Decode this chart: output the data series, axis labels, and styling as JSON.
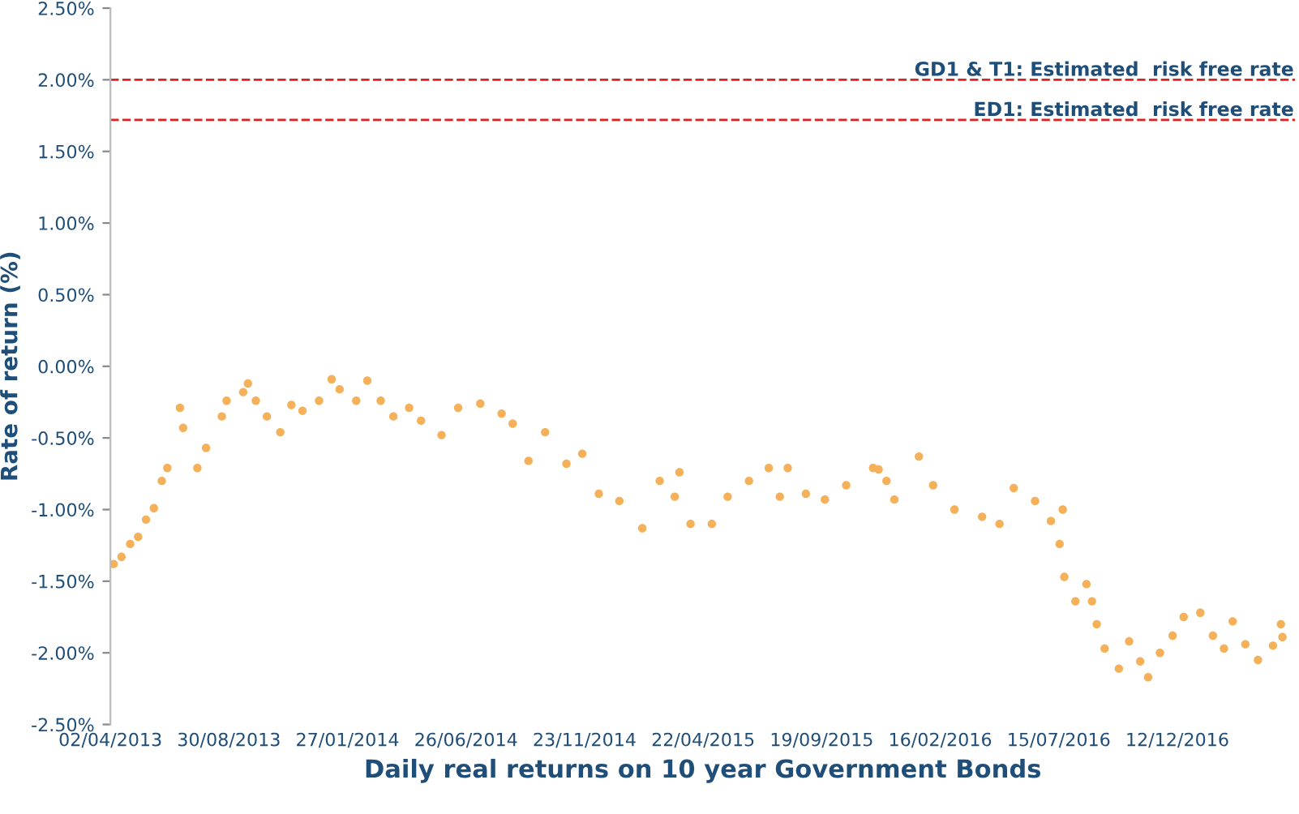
{
  "chart_data": {
    "type": "scatter",
    "xlabel": "Daily real returns on 10 year Government Bonds",
    "ylabel": "Rate of return (%)",
    "x": [
      "2013-04-06",
      "2013-04-16",
      "2013-04-27",
      "2013-05-07",
      "2013-05-17",
      "2013-05-27",
      "2013-06-06",
      "2013-06-13",
      "2013-06-29",
      "2013-07-03",
      "2013-07-21",
      "2013-08-01",
      "2013-08-21",
      "2013-08-27",
      "2013-09-17",
      "2013-09-23",
      "2013-10-03",
      "2013-10-17",
      "2013-11-03",
      "2013-11-17",
      "2013-12-01",
      "2013-12-22",
      "2014-01-07",
      "2014-01-17",
      "2014-02-07",
      "2014-02-21",
      "2014-03-10",
      "2014-03-26",
      "2014-04-15",
      "2014-04-30",
      "2014-05-26",
      "2014-06-16",
      "2014-07-14",
      "2014-08-10",
      "2014-08-24",
      "2014-09-13",
      "2014-10-04",
      "2014-10-31",
      "2014-11-20",
      "2014-12-11",
      "2015-01-06",
      "2015-02-04",
      "2015-02-26",
      "2015-03-17",
      "2015-03-23",
      "2015-04-06",
      "2015-05-03",
      "2015-05-23",
      "2015-06-19",
      "2015-07-14",
      "2015-07-28",
      "2015-08-07",
      "2015-08-30",
      "2015-09-23",
      "2015-10-20",
      "2015-11-23",
      "2015-11-30",
      "2015-12-10",
      "2015-12-20",
      "2016-01-20",
      "2016-02-07",
      "2016-03-05",
      "2016-04-09",
      "2016-05-01",
      "2016-05-19",
      "2016-06-15",
      "2016-07-05",
      "2016-07-16",
      "2016-07-20",
      "2016-07-22",
      "2016-08-05",
      "2016-08-19",
      "2016-08-26",
      "2016-09-01",
      "2016-09-11",
      "2016-09-29",
      "2016-10-12",
      "2016-10-26",
      "2016-11-05",
      "2016-11-20",
      "2016-12-06",
      "2016-12-20",
      "2017-01-10",
      "2017-01-26",
      "2017-02-09",
      "2017-02-20",
      "2017-03-08",
      "2017-03-24",
      "2017-04-12",
      "2017-04-22",
      "2017-04-24"
    ],
    "series": [
      {
        "color": "#f5b05a",
        "values": [
          -1.38,
          -1.33,
          -1.24,
          -1.19,
          -1.07,
          -0.99,
          -0.8,
          -0.71,
          -0.29,
          -0.43,
          -0.71,
          -0.57,
          -0.35,
          -0.24,
          -0.18,
          -0.12,
          -0.24,
          -0.35,
          -0.46,
          -0.27,
          -0.31,
          -0.24,
          -0.09,
          -0.16,
          -0.24,
          -0.1,
          -0.24,
          -0.35,
          -0.29,
          -0.38,
          -0.48,
          -0.29,
          -0.26,
          -0.33,
          -0.4,
          -0.66,
          -0.46,
          -0.68,
          -0.61,
          -0.89,
          -0.94,
          -1.13,
          -0.8,
          -0.91,
          -0.74,
          -1.1,
          -1.1,
          -0.91,
          -0.8,
          -0.71,
          -0.91,
          -0.71,
          -0.89,
          -0.93,
          -0.83,
          -0.71,
          -0.72,
          -0.8,
          -0.93,
          -0.63,
          -0.83,
          -1.0,
          -1.05,
          -1.1,
          -0.85,
          -0.94,
          -1.08,
          -1.24,
          -1.0,
          -1.47,
          -1.64,
          -1.52,
          -1.64,
          -1.8,
          -1.97,
          -2.11,
          -1.92,
          -2.06,
          -2.17,
          -2.0,
          -1.88,
          -1.75,
          -1.72,
          -1.88,
          -1.97,
          -1.78,
          -1.94,
          -2.05,
          -1.95,
          -1.8,
          -1.89
        ]
      }
    ],
    "xlim": [
      "2013-04-02",
      "2017-05-10"
    ],
    "xticks": [
      {
        "value": "2013-04-02",
        "label": "02/04/2013"
      },
      {
        "value": "2013-08-30",
        "label": "30/08/2013"
      },
      {
        "value": "2014-01-27",
        "label": "27/01/2014"
      },
      {
        "value": "2014-06-26",
        "label": "26/06/2014"
      },
      {
        "value": "2014-11-23",
        "label": "23/11/2014"
      },
      {
        "value": "2015-04-22",
        "label": "22/04/2015"
      },
      {
        "value": "2015-09-19",
        "label": "19/09/2015"
      },
      {
        "value": "2016-02-16",
        "label": "16/02/2016"
      },
      {
        "value": "2016-07-15",
        "label": "15/07/2016"
      },
      {
        "value": "2016-12-12",
        "label": "12/12/2016"
      }
    ],
    "ylim": [
      -2.5,
      2.5
    ],
    "yticks": [
      {
        "value": -2.5,
        "label": "-2.50%"
      },
      {
        "value": -2.0,
        "label": "-2.00%"
      },
      {
        "value": -1.5,
        "label": "-1.50%"
      },
      {
        "value": -1.0,
        "label": "-1.00%"
      },
      {
        "value": -0.5,
        "label": "-0.50%"
      },
      {
        "value": 0,
        "label": "0.00%"
      },
      {
        "value": 0.5,
        "label": "0.50%"
      },
      {
        "value": 1.0,
        "label": "1.00%"
      },
      {
        "value": 1.5,
        "label": "1.50%"
      },
      {
        "value": 2.0,
        "label": "2.00%"
      },
      {
        "value": 2.5,
        "label": "2.50%"
      }
    ],
    "ref_lines": [
      {
        "axis": "y",
        "value": 2.0,
        "label": "GD1 & T1: Estimated  risk free rate",
        "color": "#e02020",
        "line_style": "dashed"
      },
      {
        "axis": "y",
        "value": 1.72,
        "label": "ED1: Estimated  risk free rate",
        "color": "#e02020",
        "line_style": "dashed"
      }
    ],
    "marker": "circle",
    "grid": false,
    "legend": false
  }
}
